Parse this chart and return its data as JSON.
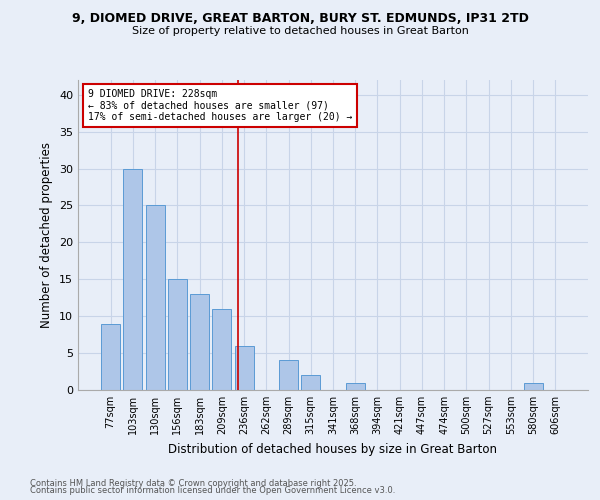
{
  "title1": "9, DIOMED DRIVE, GREAT BARTON, BURY ST. EDMUNDS, IP31 2TD",
  "title2": "Size of property relative to detached houses in Great Barton",
  "xlabel": "Distribution of detached houses by size in Great Barton",
  "ylabel": "Number of detached properties",
  "bins": [
    "77sqm",
    "103sqm",
    "130sqm",
    "156sqm",
    "183sqm",
    "209sqm",
    "236sqm",
    "262sqm",
    "289sqm",
    "315sqm",
    "341sqm",
    "368sqm",
    "394sqm",
    "421sqm",
    "447sqm",
    "474sqm",
    "500sqm",
    "527sqm",
    "553sqm",
    "580sqm",
    "606sqm"
  ],
  "values": [
    9,
    30,
    25,
    15,
    13,
    11,
    6,
    0,
    4,
    2,
    0,
    1,
    0,
    0,
    0,
    0,
    0,
    0,
    0,
    1,
    0
  ],
  "bar_color": "#aec6e8",
  "bar_edge_color": "#5b9bd5",
  "grid_color": "#c8d4e8",
  "background_color": "#e8eef8",
  "red_line_x": 5.72,
  "annotation_text": "9 DIOMED DRIVE: 228sqm\n← 83% of detached houses are smaller (97)\n17% of semi-detached houses are larger (20) →",
  "annotation_box_color": "#ffffff",
  "annotation_box_edge": "#cc0000",
  "vline_color": "#cc0000",
  "ylim": [
    0,
    42
  ],
  "yticks": [
    0,
    5,
    10,
    15,
    20,
    25,
    30,
    35,
    40
  ],
  "footer1": "Contains HM Land Registry data © Crown copyright and database right 2025.",
  "footer2": "Contains public sector information licensed under the Open Government Licence v3.0."
}
